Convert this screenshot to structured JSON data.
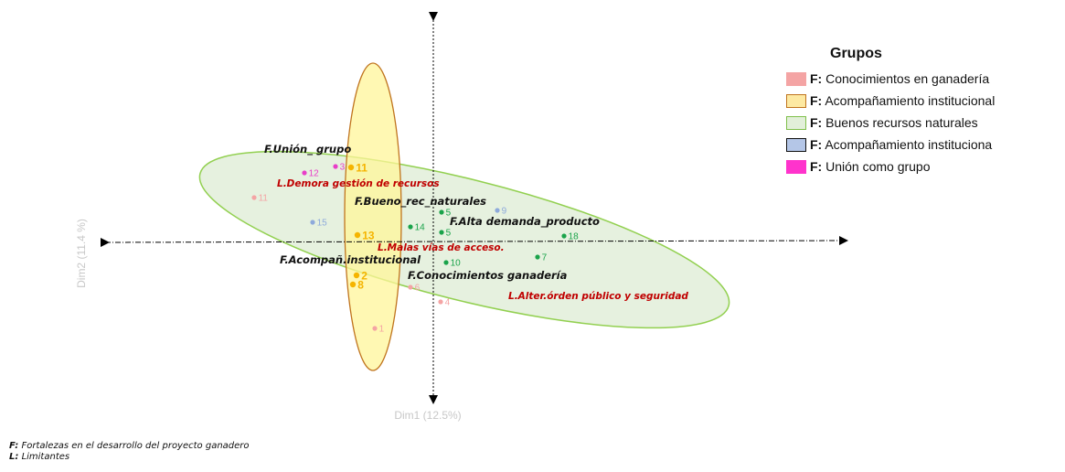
{
  "chart_data": {
    "type": "scatter",
    "xlabel": "Dim1 (12.5%)",
    "ylabel": "Dim2 (11.4 %)",
    "colors": {
      "conocimientos": "#f4a4a4",
      "acomp_inst": "#f5b400",
      "recursos": "#1aa34a",
      "acomp_inst2": "#8eaadb",
      "union": "#e83ec8",
      "limitante_text": "#c00000",
      "fortaleza_text": "#111111"
    },
    "points": [
      {
        "label": "1",
        "group": "conocimientos"
      },
      {
        "label": "4",
        "group": "conocimientos"
      },
      {
        "label": "6",
        "group": "conocimientos"
      },
      {
        "label": "11",
        "group": "conocimientos"
      },
      {
        "label": "2",
        "group": "acomp_inst"
      },
      {
        "label": "8",
        "group": "acomp_inst"
      },
      {
        "label": "13",
        "group": "acomp_inst"
      },
      {
        "label": "11",
        "group": "acomp_inst"
      },
      {
        "label": "3",
        "group": "union"
      },
      {
        "label": "12",
        "group": "union"
      },
      {
        "label": "15",
        "group": "acomp_inst2"
      },
      {
        "label": "9",
        "group": "acomp_inst2"
      },
      {
        "label": "5",
        "group": "recursos"
      },
      {
        "label": "5",
        "group": "recursos"
      },
      {
        "label": "14",
        "group": "recursos"
      },
      {
        "label": "10",
        "group": "recursos"
      },
      {
        "label": "7",
        "group": "recursos"
      },
      {
        "label": "18",
        "group": "recursos"
      }
    ],
    "annotations": [
      {
        "text": "F.Unión_ grupo",
        "kind": "F"
      },
      {
        "text": "L.Demora gestión de recursos",
        "kind": "L"
      },
      {
        "text": "F.Bueno_rec_naturales",
        "kind": "F"
      },
      {
        "text": "F.Alta demanda_producto",
        "kind": "F"
      },
      {
        "text": "L.Malas vías de acceso.",
        "kind": "L"
      },
      {
        "text": "F.Acompañ.institucional",
        "kind": "F"
      },
      {
        "text": "F.Conocimientos ganadería",
        "kind": "F"
      },
      {
        "text": "L.Alter.órden público y seguridad",
        "kind": "L"
      }
    ]
  },
  "legend": {
    "title": "Grupos",
    "items": [
      {
        "prefix": "F:",
        "label": "Conocimientos en ganadería",
        "fill": "#f4a4a4",
        "border": "#f4a4a4"
      },
      {
        "prefix": "F:",
        "label": "Acompañamiento institucional",
        "fill": "#fde9a2",
        "border": "#c0741e"
      },
      {
        "prefix": "F:",
        "label": "Buenos recursos naturales",
        "fill": "#e2efd9",
        "border": "#7fbf4a"
      },
      {
        "prefix": "F:",
        "label": "Acompañamiento instituciona",
        "fill": "#b4c6e7",
        "border": "#111111"
      },
      {
        "prefix": "F:",
        "label": "Unión como grupo",
        "fill": "#ff33cc",
        "border": "#ff33cc"
      }
    ]
  },
  "notes": {
    "f_prefix": "F:",
    "f_text": "Fortalezas en el desarrollo del proyecto ganadero",
    "l_prefix": "L:",
    "l_text": "Limitantes"
  }
}
